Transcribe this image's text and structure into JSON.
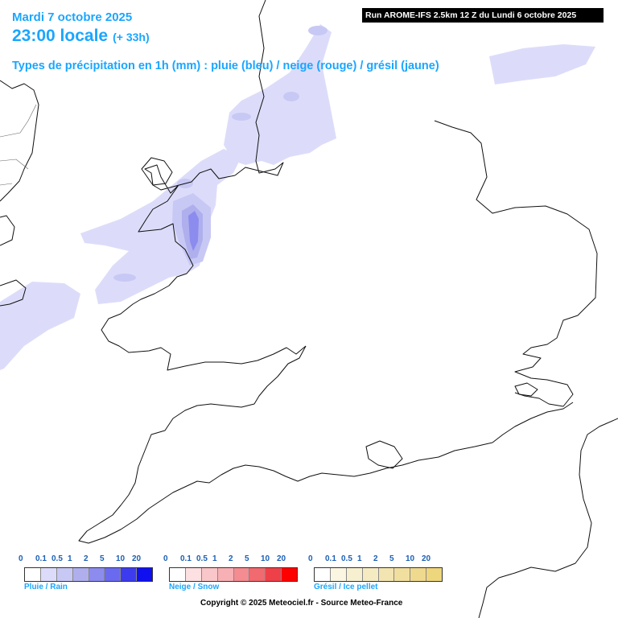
{
  "header": {
    "date": "Mardi 7 octobre 2025",
    "time": "23:00 locale",
    "lead": "(+ 33h)",
    "precip_types": "Types de précipitation en 1h (mm) : pluie (bleu) / neige (rouge) / grésil (jaune)",
    "run_info": "Run AROME-IFS 2.5km 12 Z du Lundi 6 octobre 2025"
  },
  "legends": [
    {
      "title": "Pluie / Rain",
      "ticks": [
        "0",
        "0.1",
        "0.5",
        "1",
        "2",
        "5",
        "10",
        "20"
      ],
      "colors": [
        "#ffffff",
        "#dcdcfa",
        "#c8c8f5",
        "#afafee",
        "#8c8cee",
        "#6a6af0",
        "#3c3cee",
        "#0f0ff0"
      ]
    },
    {
      "title": "Neige / Snow",
      "ticks": [
        "0",
        "0.1",
        "0.5",
        "1",
        "2",
        "5",
        "10",
        "20"
      ],
      "colors": [
        "#ffffff",
        "#fce0e2",
        "#f9c6c9",
        "#f7b0b4",
        "#f48c91",
        "#f06a70",
        "#ee4048",
        "#ff0000"
      ]
    },
    {
      "title": "Grésil / Ice pellet",
      "ticks": [
        "0",
        "0.1",
        "0.5",
        "1",
        "2",
        "5",
        "10",
        "20"
      ],
      "colors": [
        "#ffffff",
        "#fbf6e2",
        "#f7f0d0",
        "#f5ebc2",
        "#f3e5b1",
        "#f1df9f",
        "#efd98e",
        "#eed67d"
      ]
    }
  ],
  "copyright": "Copyright © 2025 Meteociel.fr - Source Meteo-France"
}
